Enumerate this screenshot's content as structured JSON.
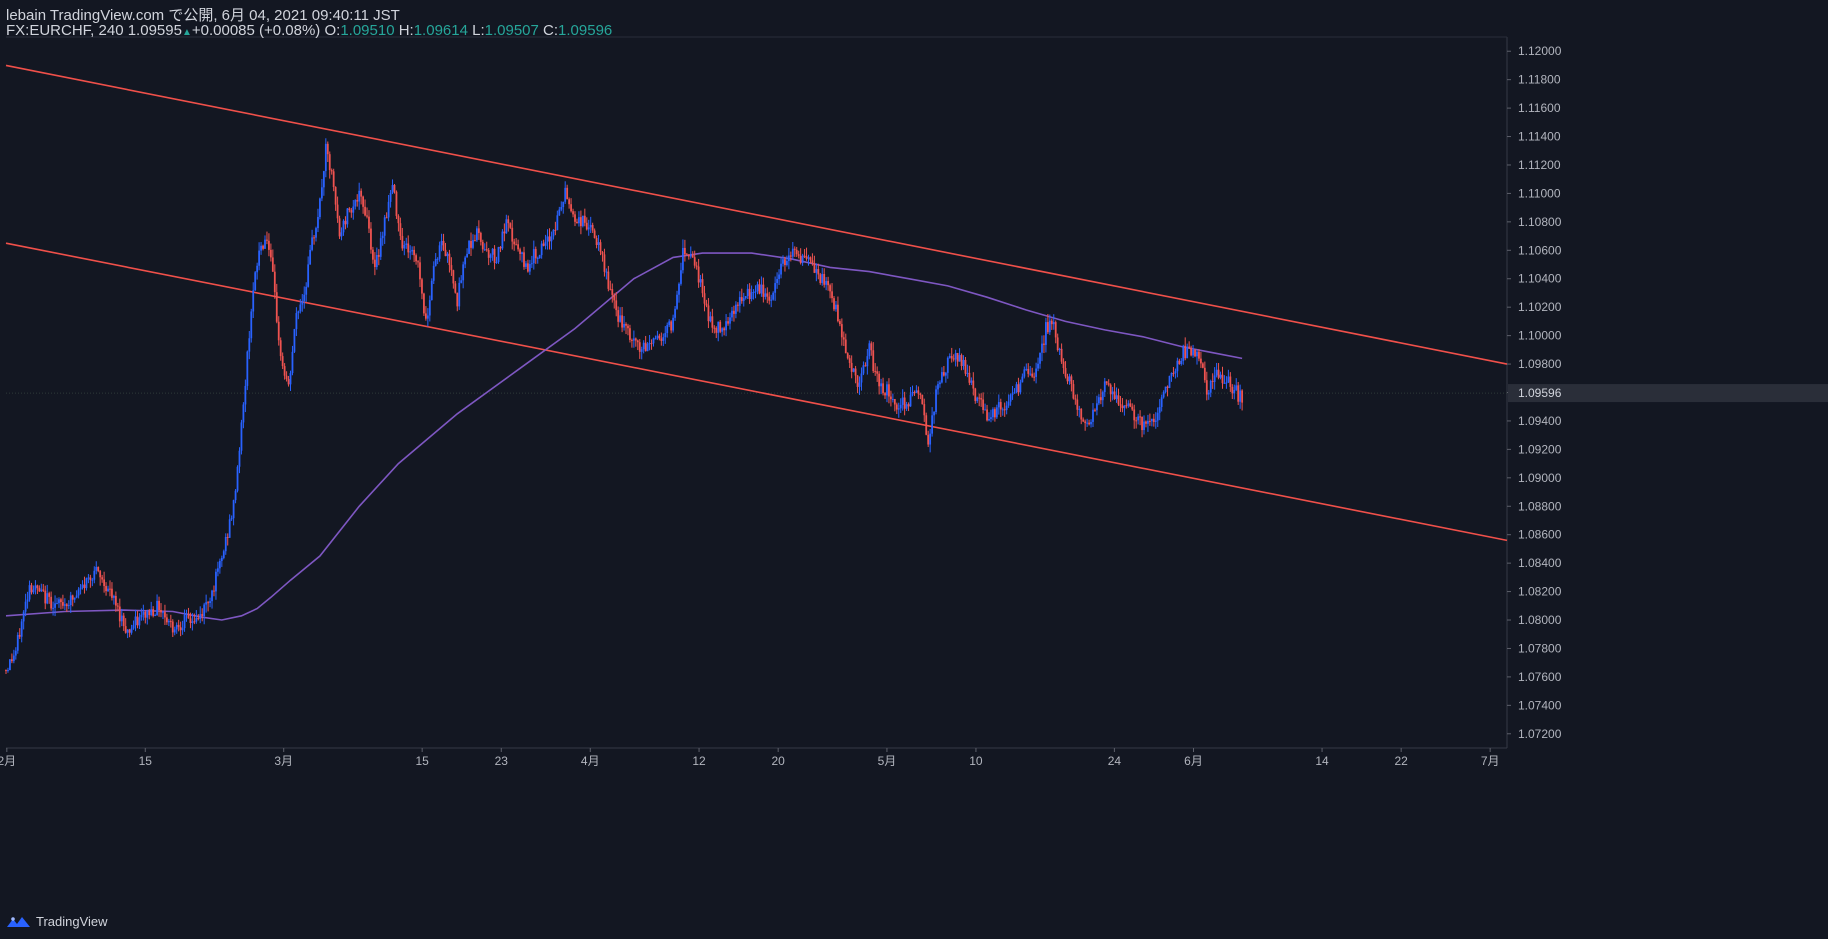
{
  "header": {
    "line1": "lebain TradingView.com で公開, 6月 04, 2021 09:40:11 JST",
    "symbol": "FX:EURCHF, 240",
    "last": "1.09595",
    "change": "+0.00085 (+0.08%)",
    "o_label": "O:",
    "o_value": "1.09510",
    "h_label": "H:",
    "h_value": "1.09614",
    "l_label": "L:",
    "l_value": "1.09507",
    "c_label": "C:",
    "c_value": "1.09596"
  },
  "brand": {
    "name": "TradingView",
    "icon": "tradingview-logo-icon"
  },
  "colors": {
    "background": "#131722",
    "up": "#2962ff",
    "down": "#ef5350",
    "trendline": "#f0504a",
    "ma": "#7e57c2",
    "axis_text": "#b2b5be",
    "price_label_bg": "#2a2e39"
  },
  "chart_data": {
    "type": "candlestick",
    "x_axis": {
      "ticks": [
        {
          "label": "2月",
          "date": "2021-02-01"
        },
        {
          "label": "15",
          "date": "2021-02-15"
        },
        {
          "label": "3月",
          "date": "2021-03-01"
        },
        {
          "label": "15",
          "date": "2021-03-15"
        },
        {
          "label": "23",
          "date": "2021-03-23"
        },
        {
          "label": "4月",
          "date": "2021-04-01"
        },
        {
          "label": "12",
          "date": "2021-04-12"
        },
        {
          "label": "20",
          "date": "2021-04-20"
        },
        {
          "label": "5月",
          "date": "2021-05-01"
        },
        {
          "label": "10",
          "date": "2021-05-10"
        },
        {
          "label": "24",
          "date": "2021-05-24"
        },
        {
          "label": "6月",
          "date": "2021-06-01"
        },
        {
          "label": "14",
          "date": "2021-06-14"
        },
        {
          "label": "22",
          "date": "2021-06-22"
        },
        {
          "label": "7月",
          "date": "2021-07-01"
        }
      ]
    },
    "y_axis": {
      "range": [
        1.071,
        1.121
      ],
      "ticks": [
        "1.07200",
        "1.07400",
        "1.07600",
        "1.07800",
        "1.08000",
        "1.08200",
        "1.08400",
        "1.08600",
        "1.08800",
        "1.09000",
        "1.09200",
        "1.09400",
        "1.09600",
        "1.09800",
        "1.10000",
        "1.10200",
        "1.10400",
        "1.10600",
        "1.10800",
        "1.11000",
        "1.11200",
        "1.11400",
        "1.11600",
        "1.11800",
        "1.12000"
      ],
      "current_price": 1.09596,
      "current_price_label": "1.09596"
    },
    "price_path": [
      [
        0,
        1.0765
      ],
      [
        5,
        1.0778
      ],
      [
        12,
        1.0825
      ],
      [
        18,
        1.0818
      ],
      [
        26,
        1.081
      ],
      [
        35,
        1.0815
      ],
      [
        45,
        1.0835
      ],
      [
        52,
        1.0822
      ],
      [
        62,
        1.0792
      ],
      [
        70,
        1.0803
      ],
      [
        78,
        1.081
      ],
      [
        85,
        1.0795
      ],
      [
        92,
        1.08
      ],
      [
        98,
        1.08
      ],
      [
        105,
        1.082
      ],
      [
        110,
        1.0843
      ],
      [
        116,
        1.088
      ],
      [
        121,
        1.095
      ],
      [
        125,
        1.102
      ],
      [
        129,
        1.106
      ],
      [
        133,
        1.107
      ],
      [
        136,
        1.104
      ],
      [
        140,
        1.0985
      ],
      [
        144,
        1.0962
      ],
      [
        148,
        1.1015
      ],
      [
        152,
        1.103
      ],
      [
        156,
        1.1065
      ],
      [
        160,
        1.1093
      ],
      [
        163,
        1.113
      ],
      [
        166,
        1.1112
      ],
      [
        170,
        1.107
      ],
      [
        175,
        1.109
      ],
      [
        180,
        1.1097
      ],
      [
        184,
        1.1085
      ],
      [
        188,
        1.1045
      ],
      [
        192,
        1.1075
      ],
      [
        197,
        1.1105
      ],
      [
        202,
        1.1065
      ],
      [
        206,
        1.106
      ],
      [
        210,
        1.1052
      ],
      [
        214,
        1.1008
      ],
      [
        218,
        1.105
      ],
      [
        222,
        1.1065
      ],
      [
        227,
        1.1048
      ],
      [
        230,
        1.1025
      ],
      [
        235,
        1.1062
      ],
      [
        240,
        1.1072
      ],
      [
        245,
        1.106
      ],
      [
        250,
        1.1055
      ],
      [
        255,
        1.1078
      ],
      [
        260,
        1.1062
      ],
      [
        265,
        1.1048
      ],
      [
        270,
        1.1058
      ],
      [
        275,
        1.1062
      ],
      [
        280,
        1.1078
      ],
      [
        285,
        1.11
      ],
      [
        290,
        1.1082
      ],
      [
        295,
        1.108
      ],
      [
        300,
        1.107
      ],
      [
        305,
        1.1048
      ],
      [
        310,
        1.102
      ],
      [
        315,
        1.1005
      ],
      [
        320,
        1.0995
      ],
      [
        325,
        1.099
      ],
      [
        330,
        1.0998
      ],
      [
        335,
        1.1
      ],
      [
        340,
        1.101
      ],
      [
        345,
        1.106
      ],
      [
        350,
        1.1058
      ],
      [
        355,
        1.103
      ],
      [
        360,
        1.1005
      ],
      [
        365,
        1.1005
      ],
      [
        370,
        1.1018
      ],
      [
        375,
        1.1025
      ],
      [
        380,
        1.103
      ],
      [
        385,
        1.1032
      ],
      [
        390,
        1.1025
      ],
      [
        395,
        1.105
      ],
      [
        400,
        1.106
      ],
      [
        405,
        1.1055
      ],
      [
        410,
        1.105
      ],
      [
        415,
        1.104
      ],
      [
        420,
        1.1032
      ],
      [
        425,
        1.1008
      ],
      [
        430,
        1.098
      ],
      [
        435,
        1.0965
      ],
      [
        440,
        1.099
      ],
      [
        445,
        1.0965
      ],
      [
        450,
        1.096
      ],
      [
        455,
        1.095
      ],
      [
        460,
        1.0955
      ],
      [
        465,
        1.0962
      ],
      [
        468,
        1.094
      ],
      [
        470,
        1.0928
      ],
      [
        475,
        1.0965
      ],
      [
        480,
        1.098
      ],
      [
        485,
        1.0985
      ],
      [
        490,
        1.0975
      ],
      [
        495,
        1.0955
      ],
      [
        500,
        1.0945
      ],
      [
        505,
        1.0948
      ],
      [
        510,
        1.095
      ],
      [
        515,
        1.0962
      ],
      [
        520,
        1.0975
      ],
      [
        525,
        1.0972
      ],
      [
        530,
        1.1005
      ],
      [
        533,
        1.1012
      ],
      [
        536,
        1.099
      ],
      [
        540,
        1.0975
      ],
      [
        545,
        1.0955
      ],
      [
        550,
        1.0935
      ],
      [
        555,
        1.095
      ],
      [
        560,
        1.0965
      ],
      [
        565,
        1.0955
      ],
      [
        570,
        1.095
      ],
      [
        575,
        1.0945
      ],
      [
        580,
        1.0935
      ],
      [
        585,
        1.094
      ],
      [
        590,
        1.096
      ],
      [
        595,
        1.0975
      ],
      [
        600,
        1.0988
      ],
      [
        605,
        1.099
      ],
      [
        608,
        1.0985
      ],
      [
        612,
        1.096
      ],
      [
        617,
        1.0972
      ],
      [
        622,
        1.0968
      ],
      [
        626,
        1.0962
      ],
      [
        630,
        1.0955
      ]
    ],
    "moving_average": [
      [
        0,
        1.0803
      ],
      [
        30,
        1.0806
      ],
      [
        60,
        1.0807
      ],
      [
        85,
        1.0806
      ],
      [
        100,
        1.0802
      ],
      [
        110,
        1.08
      ],
      [
        120,
        1.0803
      ],
      [
        128,
        1.0808
      ],
      [
        135,
        1.0816
      ],
      [
        145,
        1.0828
      ],
      [
        160,
        1.0845
      ],
      [
        180,
        1.088
      ],
      [
        200,
        1.091
      ],
      [
        230,
        1.0945
      ],
      [
        260,
        1.0975
      ],
      [
        290,
        1.1005
      ],
      [
        320,
        1.104
      ],
      [
        340,
        1.1055
      ],
      [
        355,
        1.1058
      ],
      [
        380,
        1.1058
      ],
      [
        400,
        1.1054
      ],
      [
        420,
        1.1048
      ],
      [
        440,
        1.1045
      ],
      [
        460,
        1.104
      ],
      [
        480,
        1.1035
      ],
      [
        500,
        1.1027
      ],
      [
        520,
        1.1018
      ],
      [
        540,
        1.101
      ],
      [
        560,
        1.1004
      ],
      [
        580,
        1.0999
      ],
      [
        600,
        1.0992
      ],
      [
        615,
        1.0988
      ],
      [
        630,
        1.0984
      ]
    ],
    "trendlines": [
      {
        "name": "upper channel",
        "from": [
          0,
          1.119
        ],
        "to": [
          765,
          1.098
        ]
      },
      {
        "name": "lower channel",
        "from": [
          0,
          1.1065
        ],
        "to": [
          765,
          1.0856
        ]
      }
    ],
    "x_index_range": [
      0,
      765
    ]
  }
}
